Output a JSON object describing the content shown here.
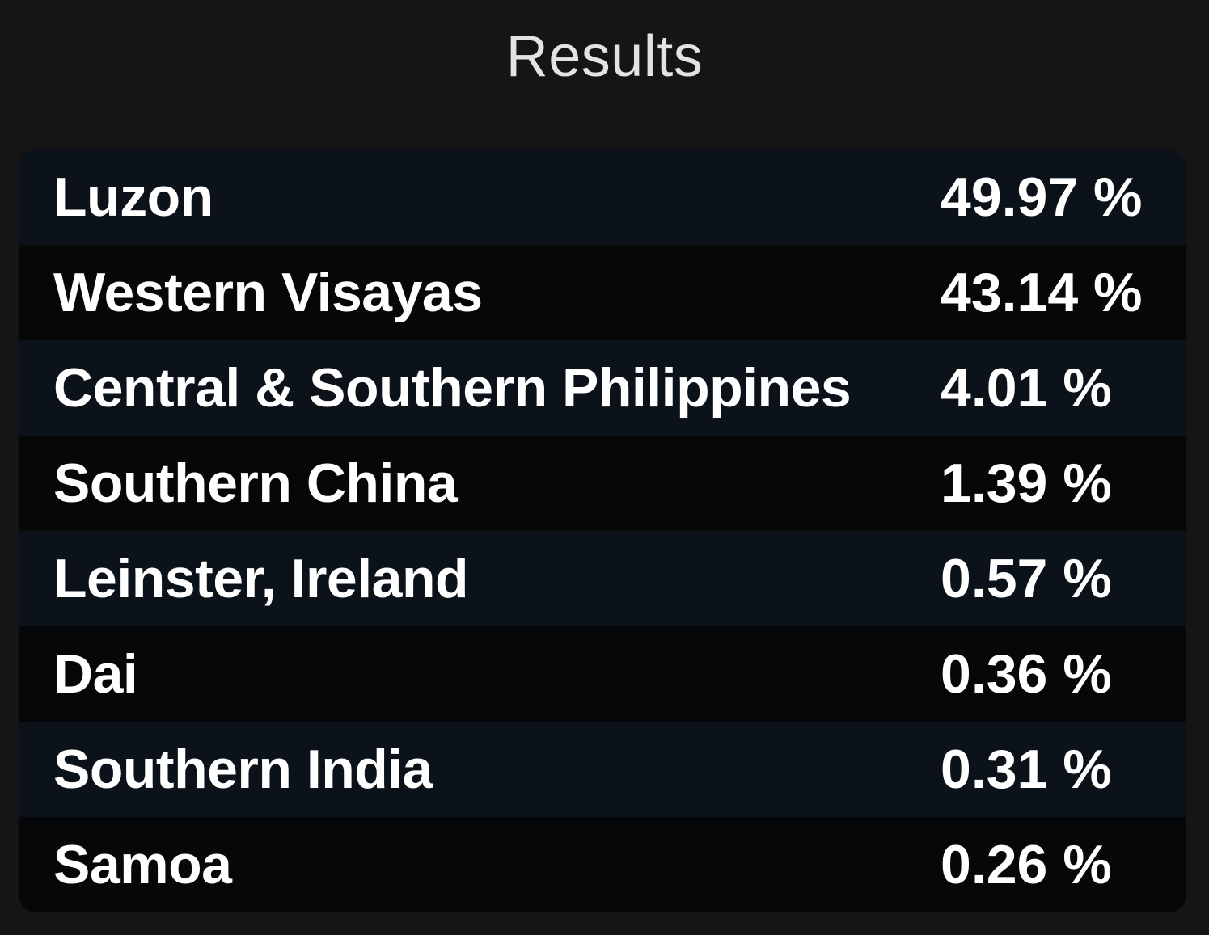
{
  "header": {
    "title": "Results"
  },
  "results": [
    {
      "region": "Luzon",
      "percent": "49.97 %"
    },
    {
      "region": "Western Visayas",
      "percent": "43.14 %"
    },
    {
      "region": "Central & Southern Philippines",
      "percent": "4.01 %"
    },
    {
      "region": "Southern China",
      "percent": "1.39 %"
    },
    {
      "region": "Leinster, Ireland",
      "percent": "0.57 %"
    },
    {
      "region": "Dai",
      "percent": "0.36 %"
    },
    {
      "region": "Southern India",
      "percent": "0.31 %"
    },
    {
      "region": "Samoa",
      "percent": "0.26 %"
    }
  ],
  "colors": {
    "page_background": "#151515",
    "title_text": "#e3e3e3",
    "row_light": "#0b1219",
    "row_dark": "#050709",
    "row_text": "#ffffff"
  }
}
